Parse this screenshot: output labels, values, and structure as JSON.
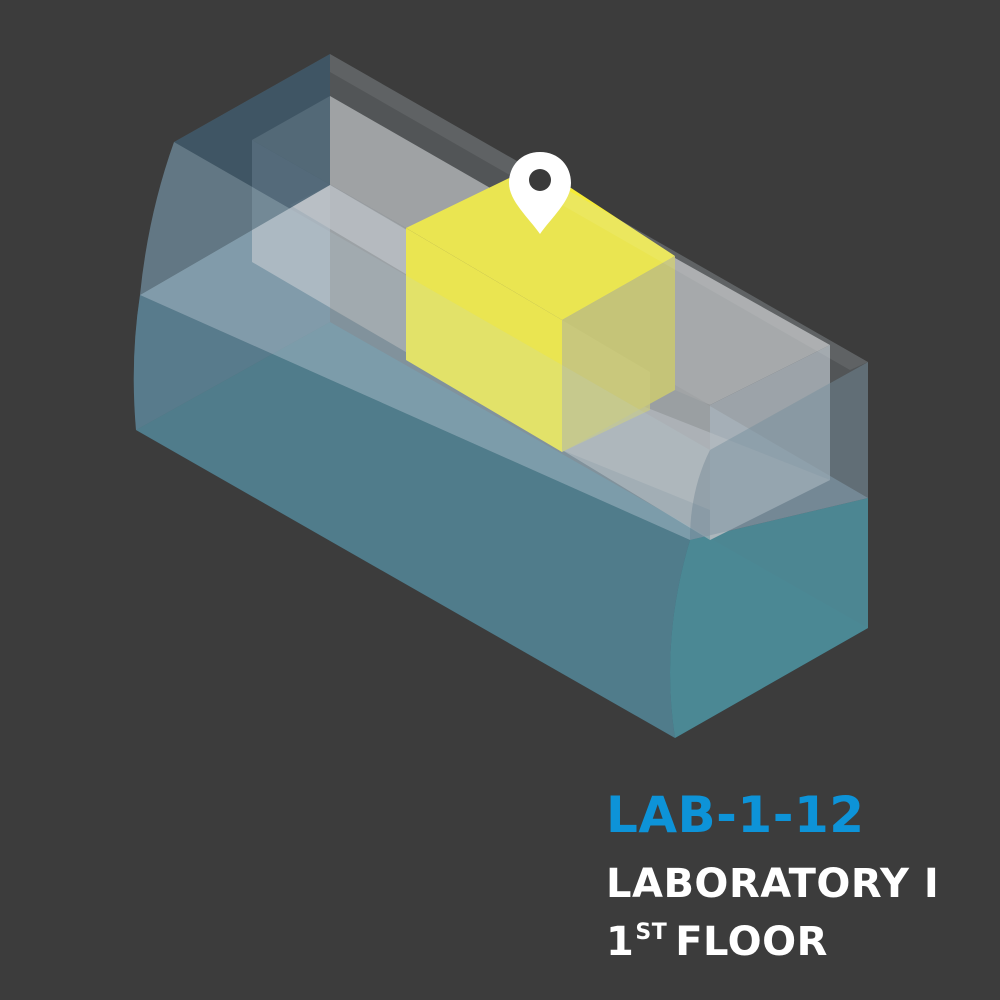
{
  "location": {
    "code": "LAB-1-12",
    "name": "LABORATORY I",
    "floor_number": "1",
    "floor_suffix": "ST",
    "floor_word": "FLOOR"
  },
  "icons": {
    "marker": "location-pin-icon"
  },
  "colors": {
    "background": "#3c3c3c",
    "highlight": "#f6ec35",
    "code_text": "#0d93d8",
    "label_text": "#ffffff",
    "glass": "#8fb0c4",
    "water": "#2c5c69"
  }
}
